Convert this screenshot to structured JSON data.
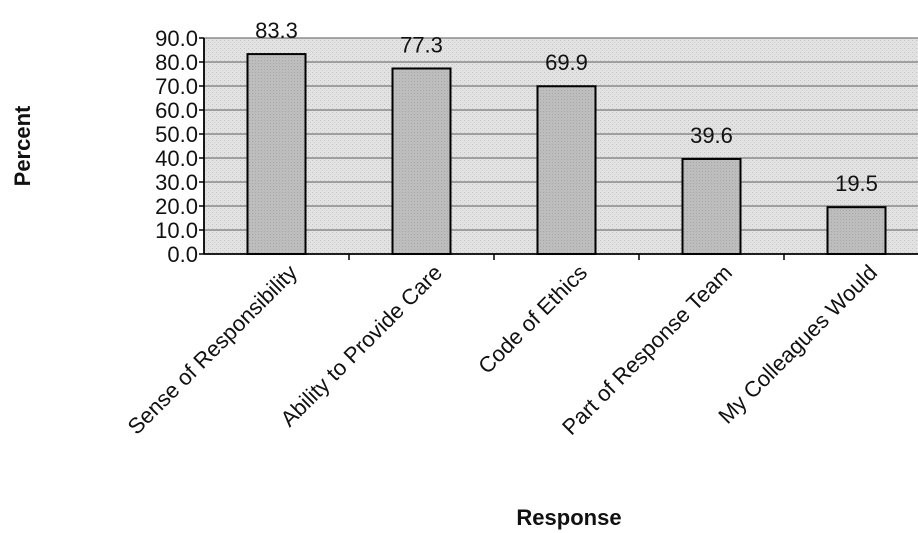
{
  "chart_data": {
    "type": "bar",
    "categories": [
      "Sense of Responsibility",
      "Ability to Provide Care",
      "Code of Ethics",
      "Part of Response Team",
      "My Colleagues Would"
    ],
    "values": [
      83.3,
      77.3,
      69.9,
      39.6,
      19.5
    ],
    "value_labels": [
      "83.3",
      "77.3",
      "69.9",
      "39.6",
      "19.5"
    ],
    "title": "",
    "xlabel": "Response",
    "ylabel": "Percent",
    "ylim": [
      0,
      90
    ],
    "yticks": [
      "0.0",
      "10.0",
      "20.0",
      "30.0",
      "40.0",
      "50.0",
      "60.0",
      "70.0",
      "80.0",
      "90.0"
    ],
    "grid": true,
    "legend": "none",
    "colors": {
      "bar": "#b9b9b9",
      "plot_bg": "#dcdcdc",
      "grid": "#7a7a7a",
      "outline": "#000000"
    }
  }
}
